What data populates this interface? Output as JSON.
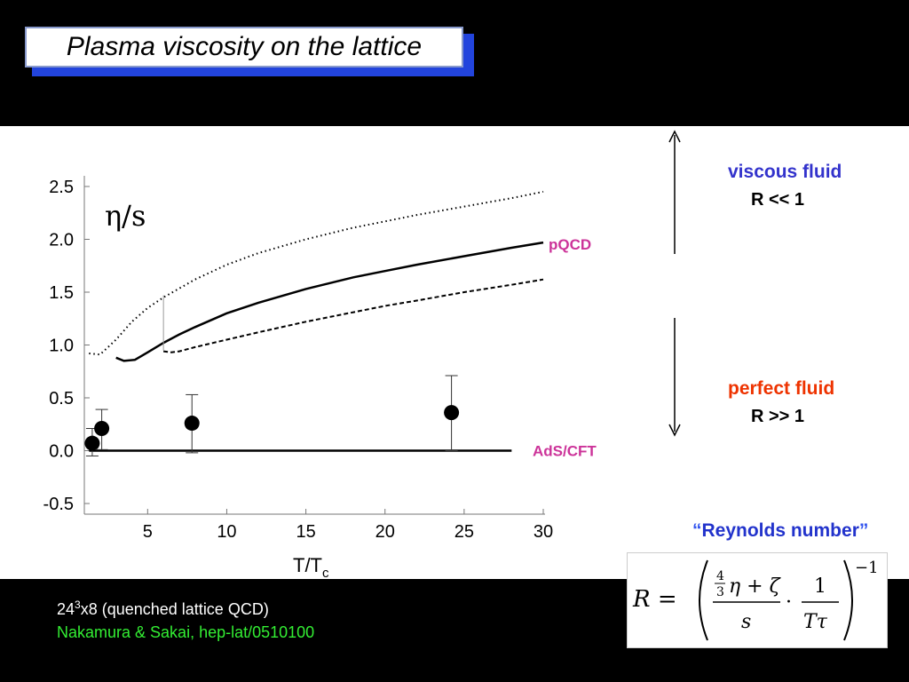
{
  "slide": {
    "title": "Plasma viscosity on the lattice",
    "viscous": {
      "label": "viscous fluid",
      "relation": "R << 1"
    },
    "perfect": {
      "label": "perfect fluid",
      "relation": "R >> 1"
    },
    "reynolds": {
      "open_quote": "“",
      "label": "Reynolds number",
      "close_quote": "”"
    },
    "formula": {
      "lhs": "R =",
      "num_frac_num": "4",
      "num_frac_den": "3",
      "num_rest": "η + ζ",
      "den": "s",
      "dot": "·",
      "frac2_num": "1",
      "frac2_den": "Tτ",
      "exponent": "−1"
    },
    "footer": {
      "lattice_base": "24",
      "lattice_sup": "3",
      "lattice_rest": "x8 (quenched lattice QCD)",
      "citation": "Nakamura & Sakai,  hep-lat/0510100"
    }
  },
  "chart_data": {
    "type": "line",
    "ylabel": "η/s",
    "xlabel_main": "T/T",
    "xlabel_sub": "c",
    "xlim": [
      1,
      30
    ],
    "ylim": [
      -0.5,
      2.5
    ],
    "x_ticks": [
      "5",
      "10",
      "15",
      "20",
      "25",
      "30"
    ],
    "x_tick_values": [
      5,
      10,
      15,
      20,
      25,
      30
    ],
    "y_ticks": [
      "2.5",
      "2.0",
      "1.5",
      "1.0",
      "0.5",
      "0.0",
      "-0.5"
    ],
    "y_tick_values": [
      2.5,
      2.0,
      1.5,
      1.0,
      0.5,
      0.0,
      -0.5
    ],
    "grid": false,
    "series": [
      {
        "style": "dotted",
        "x": [
          1.3,
          2.0,
          3.0,
          4.0,
          5.0,
          6.0,
          8.0,
          10.0,
          12.0,
          15.0,
          18.0,
          20.0,
          22.0,
          25.0,
          28.0,
          30.0
        ],
        "y": [
          0.92,
          0.91,
          1.05,
          1.22,
          1.35,
          1.45,
          1.62,
          1.76,
          1.87,
          2.0,
          2.11,
          2.17,
          2.23,
          2.31,
          2.39,
          2.45
        ]
      },
      {
        "style": "solid",
        "x": [
          3.0,
          3.5,
          4.2,
          5.0,
          6.0,
          7.0,
          8.0,
          10.0,
          12.0,
          15.0,
          18.0,
          20.0,
          22.0,
          25.0,
          28.0,
          30.0
        ],
        "y": [
          0.88,
          0.85,
          0.86,
          0.93,
          1.02,
          1.1,
          1.17,
          1.3,
          1.4,
          1.53,
          1.64,
          1.7,
          1.76,
          1.84,
          1.92,
          1.97
        ]
      },
      {
        "style": "dashed",
        "x": [
          6.0,
          6.5,
          7.0,
          8.0,
          10.0,
          12.0,
          15.0,
          18.0,
          20.0,
          22.0,
          25.0,
          28.0,
          30.0
        ],
        "y": [
          0.94,
          0.93,
          0.94,
          0.98,
          1.05,
          1.12,
          1.22,
          1.31,
          1.37,
          1.42,
          1.5,
          1.57,
          1.62
        ]
      }
    ],
    "connector_line": {
      "x": 6.0,
      "y_from": 0.95,
      "y_to": 1.47
    },
    "reference_line": {
      "label": "AdS/CFT",
      "y": 0.0,
      "x_from": 1.3,
      "x_to": 28.0
    },
    "pqcd_label": "pQCD",
    "points": [
      {
        "x": 1.5,
        "y": 0.07,
        "err_low": 0.12,
        "err_high": 0.14
      },
      {
        "x": 2.1,
        "y": 0.21,
        "err_low": 0.2,
        "err_high": 0.18
      },
      {
        "x": 7.8,
        "y": 0.26,
        "err_low": 0.28,
        "err_high": 0.27
      },
      {
        "x": 24.2,
        "y": 0.36,
        "err_low": 0.36,
        "err_high": 0.35
      }
    ],
    "colors": {
      "curve": "#000000",
      "pqcd": "#cc3399",
      "ads": "#cc3399"
    }
  }
}
